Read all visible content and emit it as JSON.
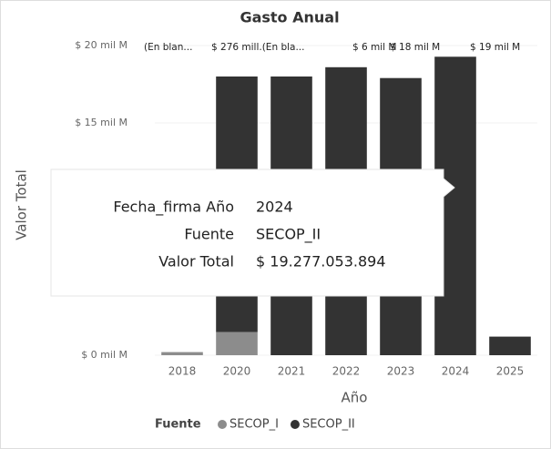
{
  "chart_data": {
    "type": "bar",
    "stacked": true,
    "title": "Gasto Anual",
    "y_label": "Valor Total",
    "x_label": "Año",
    "categories": [
      "2018",
      "2020",
      "2021",
      "2022",
      "2023",
      "2024",
      "2025"
    ],
    "series": [
      {
        "name": "SECOP_I",
        "color": "#8c8c8c",
        "values": [
          0.2,
          1.5,
          null,
          null,
          null,
          null,
          null
        ]
      },
      {
        "name": "SECOP_II",
        "color": "#333333",
        "values": [
          null,
          16.5,
          18,
          18.6,
          17.9,
          19.277053894,
          1.2
        ]
      }
    ],
    "ylim": [
      0,
      20
    ],
    "yticks": [
      {
        "value": 0,
        "label": "$ 0 mil M"
      },
      {
        "value": 15,
        "label": "$ 15 mil M"
      },
      {
        "value": 20,
        "label": "$ 20 mil M"
      }
    ],
    "top_labels": [
      "(En blan...",
      "$ 276 mill.(En bla...",
      "$ 6 mil M",
      "$ 18 mil M",
      "$ 19 mil M"
    ],
    "legend_title": "Fuente",
    "tooltip": [
      {
        "label": "Fecha_firma Año",
        "value": "2024"
      },
      {
        "label": "Fuente",
        "value": "SECOP_II"
      },
      {
        "label": "Valor Total",
        "value": "$ 19.277.053.894"
      }
    ]
  }
}
